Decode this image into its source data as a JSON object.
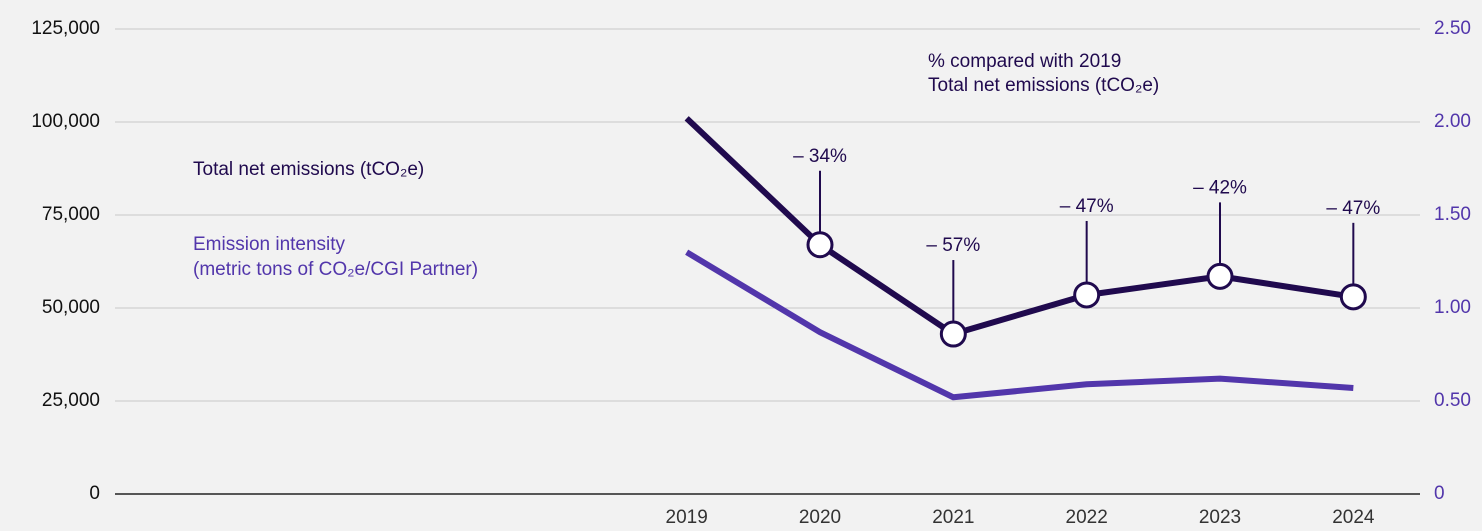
{
  "chart_data": {
    "type": "line",
    "categories": [
      "2019",
      "2020",
      "2021",
      "2022",
      "2023",
      "2024"
    ],
    "series": [
      {
        "name": "Total net emissions (tCO₂e)",
        "color": "#200a4e",
        "values": [
          101000,
          67000,
          43000,
          53500,
          58500,
          53000
        ]
      },
      {
        "name": "Emission intensity",
        "unit_label": "(metric tons of CO₂e/CGI Partner)",
        "color": "#5236ab",
        "axis": "y2",
        "values": [
          1.3,
          0.87,
          0.52,
          0.59,
          0.62,
          0.57
        ]
      }
    ],
    "change_labels": [
      null,
      "– 34%",
      "– 57%",
      "– 47%",
      "– 42%",
      "– 47%"
    ],
    "annotation_title": [
      "% compared with 2019",
      "Total net emissions (tCO₂e)"
    ],
    "ylim": [
      0,
      125000
    ],
    "yticks": [
      0,
      {
        "value": 25000,
        "label": "25,000"
      },
      {
        "value": 50000,
        "label": "50,000"
      },
      {
        "value": 75000,
        "label": "75,000"
      },
      {
        "value": 100000,
        "label": "100,000"
      },
      {
        "value": 125000,
        "label": "125,000"
      }
    ],
    "y2lim": [
      0,
      2.5
    ],
    "y2ticks": [
      0,
      {
        "value": 0.5,
        "label": "0.50"
      },
      {
        "value": 1,
        "label": "1.00"
      },
      {
        "value": 1.5,
        "label": "1.50"
      },
      {
        "value": 2,
        "label": "2.00"
      },
      {
        "value": 2.5,
        "label": "2.50"
      }
    ],
    "grid": true
  }
}
